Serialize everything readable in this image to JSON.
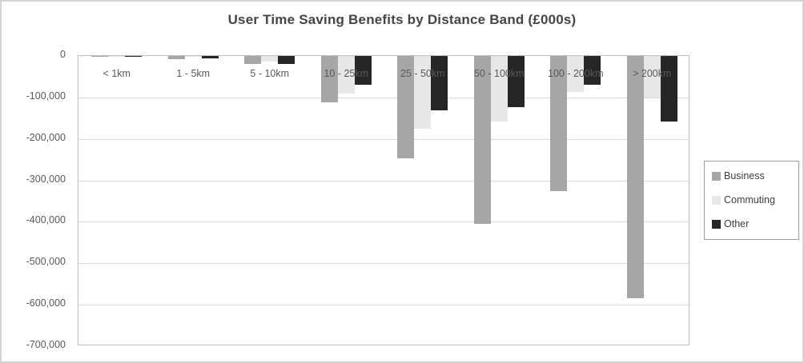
{
  "chart_data": {
    "type": "bar",
    "title": "User Time Saving Benefits by Distance Band (£000s)",
    "categories": [
      "< 1km",
      "1 - 5km",
      "5 - 10km",
      "10 - 25km",
      "25 - 50km",
      "50 - 100km",
      "100 - 200km",
      "> 200km"
    ],
    "series": [
      {
        "name": "Business",
        "color": "#a6a6a6",
        "values": [
          -1000,
          -8000,
          -20000,
          -112000,
          -246000,
          -405000,
          -326000,
          -585000
        ]
      },
      {
        "name": "Commuting",
        "color": "#e7e7e7",
        "values": [
          -500,
          -1500,
          -13000,
          -90000,
          -175000,
          -158000,
          -87000,
          -100000
        ]
      },
      {
        "name": "Other",
        "color": "#262626",
        "values": [
          -500,
          -5000,
          -19000,
          -70000,
          -131000,
          -123000,
          -70000,
          -158000
        ]
      }
    ],
    "ylim": [
      -700000,
      0
    ],
    "y_ticks": [
      "0",
      "-100,000",
      "-200,000",
      "-300,000",
      "-400,000",
      "-500,000",
      "-600,000",
      "-700,000"
    ],
    "grid": true,
    "legend_position": "right",
    "units": "£000s"
  },
  "colors": {
    "frame_border": "#d4d4d4",
    "plot_border": "#bfbfbf",
    "gridline": "#d9d9d9",
    "axis_text": "#595959",
    "title_text": "#454545",
    "legend_border": "#9e9e9e",
    "legend_text": "#404040",
    "background": "#ffffff"
  }
}
